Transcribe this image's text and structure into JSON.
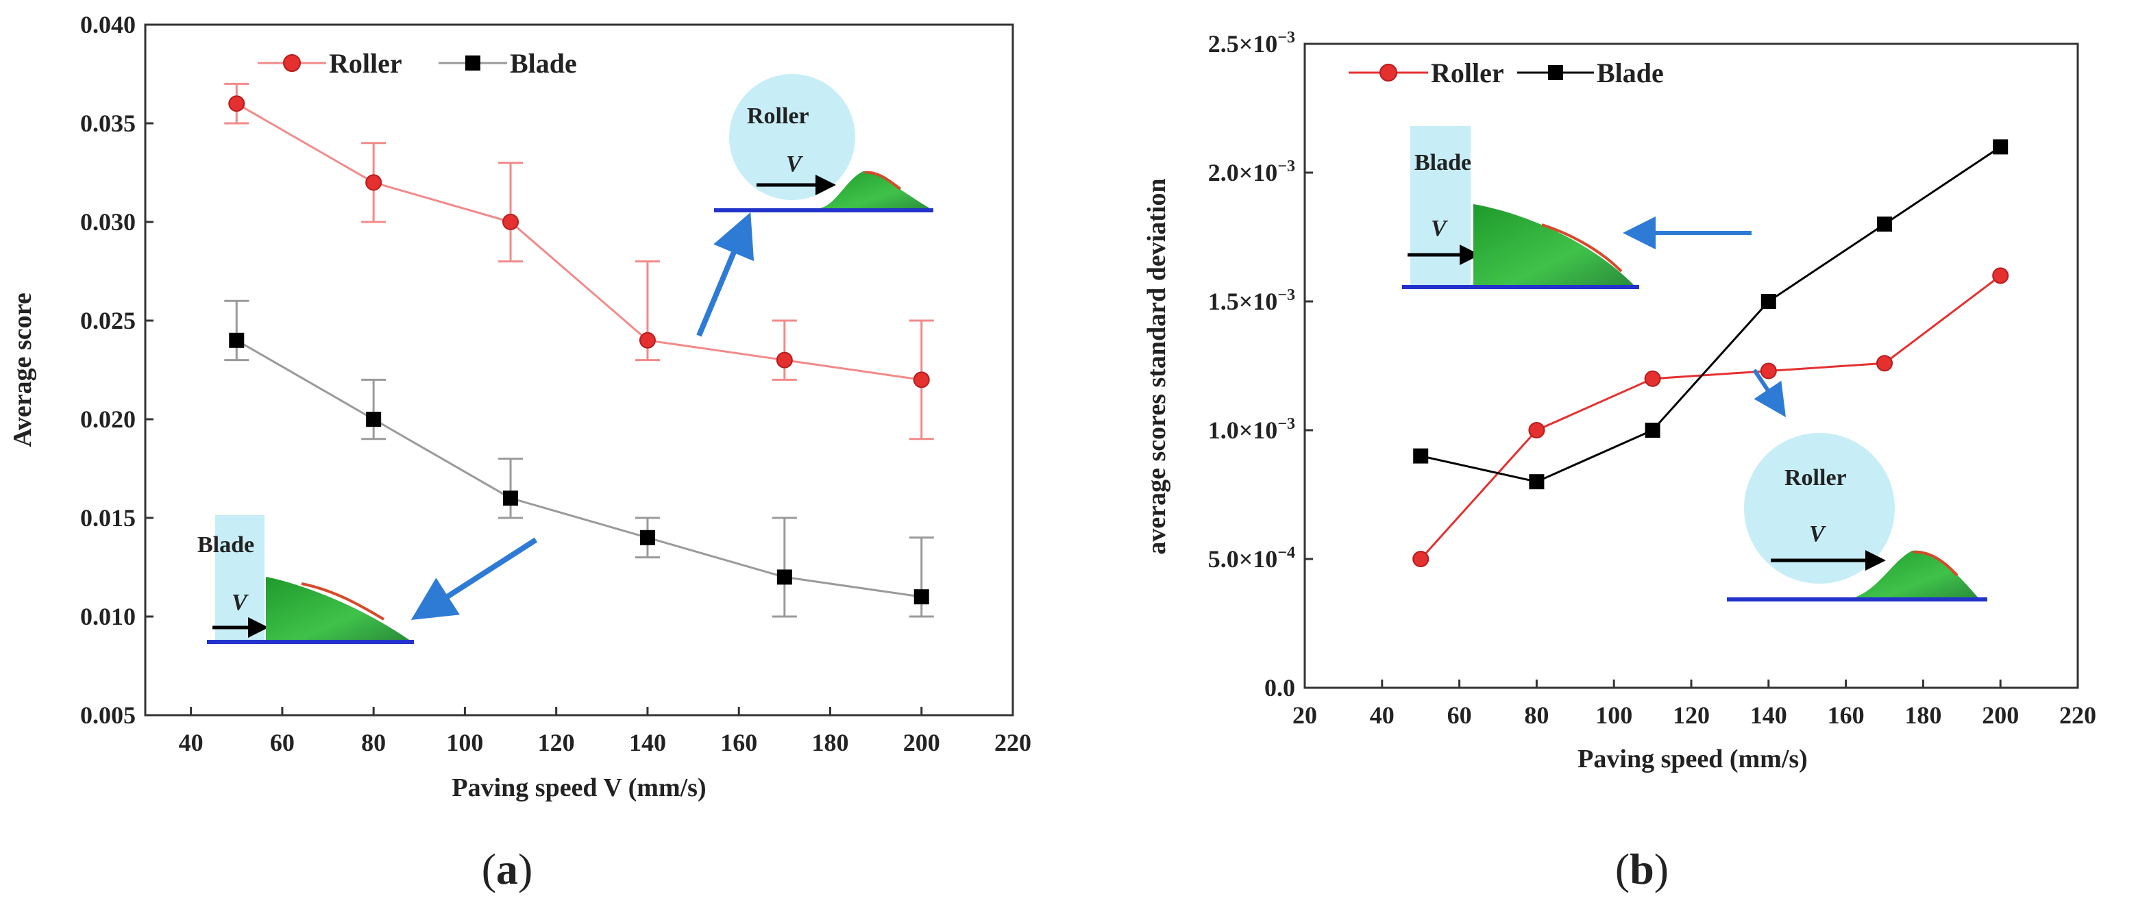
{
  "colors": {
    "roller": "#f28a8a",
    "roller_marker": "#e53030",
    "blade": "#9a9a9a",
    "blade_marker": "#000000",
    "arrow": "#2e7bd6",
    "inset_bg": "#c7eef7",
    "particle_green": "#2fb03a",
    "particle_red": "#d64a2a",
    "particle_blue": "#2233cc"
  },
  "chart_data": [
    {
      "type": "line",
      "panel_label": "a",
      "xlabel": "Paving speed V (mm/s)",
      "ylabel": "Average score",
      "xlim": [
        30,
        220
      ],
      "ylim": [
        0.005,
        0.04
      ],
      "xticks": [
        40,
        60,
        80,
        100,
        120,
        140,
        160,
        180,
        200,
        220
      ],
      "xtick_labels": [
        "40",
        "60",
        "80",
        "100",
        "120",
        "140",
        "160",
        "180",
        "200",
        "220"
      ],
      "yticks": [
        0.005,
        0.01,
        0.015,
        0.02,
        0.025,
        0.03,
        0.035,
        0.04
      ],
      "ytick_labels": [
        "0.005",
        "0.010",
        "0.015",
        "0.020",
        "0.025",
        "0.030",
        "0.035",
        "0.040"
      ],
      "legend": [
        "Roller",
        "Blade"
      ],
      "series": [
        {
          "name": "Roller",
          "marker": "circle",
          "x": [
            50,
            80,
            110,
            140,
            170,
            200
          ],
          "values": [
            0.036,
            0.032,
            0.03,
            0.024,
            0.023,
            0.022
          ],
          "err_low": [
            0.035,
            0.03,
            0.028,
            0.023,
            0.022,
            0.019
          ],
          "err_high": [
            0.037,
            0.034,
            0.033,
            0.028,
            0.025,
            0.025
          ]
        },
        {
          "name": "Blade",
          "marker": "square",
          "x": [
            50,
            80,
            110,
            140,
            170,
            200
          ],
          "values": [
            0.024,
            0.02,
            0.016,
            0.014,
            0.012,
            0.011
          ],
          "err_low": [
            0.023,
            0.019,
            0.015,
            0.013,
            0.01,
            0.01
          ],
          "err_high": [
            0.026,
            0.022,
            0.018,
            0.015,
            0.015,
            0.014
          ]
        }
      ],
      "insets": [
        {
          "label": "Roller",
          "velocity_label": "V"
        },
        {
          "label": "Blade",
          "velocity_label": "V"
        }
      ]
    },
    {
      "type": "line",
      "panel_label": "b",
      "xlabel": "Paving speed (mm/s)",
      "ylabel": "average scores standard deviation",
      "xlim": [
        20,
        220
      ],
      "ylim": [
        0,
        0.0025
      ],
      "xticks": [
        20,
        40,
        60,
        80,
        100,
        120,
        140,
        160,
        180,
        200,
        220
      ],
      "xtick_labels": [
        "20",
        "40",
        "60",
        "80",
        "100",
        "120",
        "140",
        "160",
        "180",
        "200",
        "220"
      ],
      "yticks": [
        0,
        0.0005,
        0.001,
        0.0015,
        0.002,
        0.0025
      ],
      "ytick_labels": [
        {
          "mantissa": "0.0",
          "exp": ""
        },
        {
          "mantissa": "5.0×10",
          "exp": "−4"
        },
        {
          "mantissa": "1.0×10",
          "exp": "−3"
        },
        {
          "mantissa": "1.5×10",
          "exp": "−3"
        },
        {
          "mantissa": "2.0×10",
          "exp": "−3"
        },
        {
          "mantissa": "2.5×10",
          "exp": "−3"
        }
      ],
      "legend": [
        "Roller",
        "Blade"
      ],
      "series": [
        {
          "name": "Roller",
          "marker": "circle",
          "x": [
            50,
            80,
            110,
            140,
            170,
            200
          ],
          "values": [
            0.0005,
            0.001,
            0.0012,
            0.00123,
            0.00126,
            0.0016
          ]
        },
        {
          "name": "Blade",
          "marker": "square",
          "x": [
            50,
            80,
            110,
            140,
            170,
            200
          ],
          "values": [
            0.0009,
            0.0008,
            0.001,
            0.0015,
            0.0018,
            0.0021
          ]
        }
      ],
      "insets": [
        {
          "label": "Blade",
          "velocity_label": "V"
        },
        {
          "label": "Roller",
          "velocity_label": "V"
        }
      ]
    }
  ]
}
